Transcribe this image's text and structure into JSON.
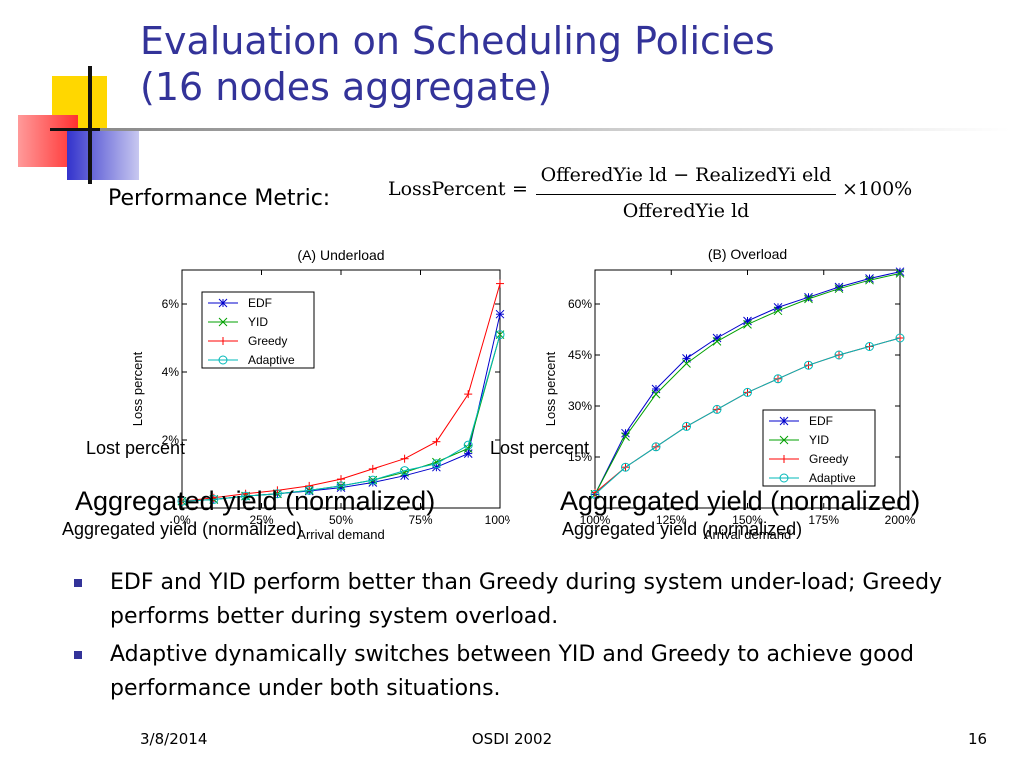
{
  "slide": {
    "title_line1": "Evaluation on Scheduling Policies",
    "title_line2": "(16 nodes aggregate)",
    "metric_label": "Performance Metric:",
    "formula": {
      "lhs": "LossPercent",
      "equals": "=",
      "numerator": "OfferedYie ld − RealizedYi eld",
      "denominator": "OfferedYie ld",
      "multiplier": "×100%"
    },
    "bullets": [
      "EDF and YID perform better than Greedy during system under-load; Greedy performs better during system overload.",
      "Adaptive dynamically switches between YID and Greedy to achieve good performance under both situations."
    ],
    "footer": {
      "date": "3/8/2014",
      "venue": "OSDI 2002",
      "page": "16"
    },
    "overlays": {
      "lost_left": "Lost percent",
      "lost_right": "Lost percent",
      "agg_big": "Aggregated yield (normalized)",
      "agg_small": "Aggregated yield (normalized)"
    },
    "colors": {
      "title": "#333399",
      "bullet": "#333399"
    }
  },
  "chart_data": [
    {
      "type": "line",
      "title": "(A) Underload",
      "xlabel": "Arrival demand",
      "ylabel": "Loss percent",
      "x": [
        0,
        10,
        20,
        30,
        40,
        50,
        60,
        70,
        80,
        90,
        100
      ],
      "xticks": [
        0,
        25,
        50,
        75,
        100
      ],
      "xtick_labels": [
        "0%",
        "25%",
        "50%",
        "75%",
        "100%"
      ],
      "yticks": [
        2,
        4,
        6
      ],
      "ytick_labels": [
        "2%",
        "4%",
        "6%"
      ],
      "xlim": [
        0,
        100
      ],
      "ylim": [
        0,
        7
      ],
      "legend_position": "top-left",
      "series": [
        {
          "name": "EDF",
          "color": "#0000cc",
          "marker": "star",
          "values": [
            0.2,
            0.25,
            0.35,
            0.42,
            0.5,
            0.6,
            0.75,
            0.95,
            1.2,
            1.6,
            5.7
          ]
        },
        {
          "name": "YID",
          "color": "#00a000",
          "marker": "x",
          "values": [
            0.2,
            0.25,
            0.35,
            0.42,
            0.52,
            0.65,
            0.82,
            1.05,
            1.35,
            1.75,
            5.1
          ]
        },
        {
          "name": "Greedy",
          "color": "#ff0000",
          "marker": "plus",
          "values": [
            0.2,
            0.3,
            0.42,
            0.52,
            0.65,
            0.85,
            1.15,
            1.45,
            1.95,
            3.35,
            6.6
          ]
        },
        {
          "name": "Adaptive",
          "color": "#00b8b8",
          "marker": "circle",
          "values": [
            0.2,
            0.25,
            0.35,
            0.42,
            0.52,
            0.65,
            0.82,
            1.1,
            1.3,
            1.85,
            5.1
          ]
        }
      ]
    },
    {
      "type": "line",
      "title": "(B) Overload",
      "xlabel": "Arrival demand",
      "ylabel": "Loss percent",
      "x": [
        100,
        110,
        120,
        130,
        140,
        150,
        160,
        170,
        180,
        190,
        200
      ],
      "xticks": [
        100,
        125,
        150,
        175,
        200
      ],
      "xtick_labels": [
        "100%",
        "125%",
        "150%",
        "175%",
        "200%"
      ],
      "yticks": [
        15,
        30,
        45,
        60
      ],
      "ytick_labels": [
        "15%",
        "30%",
        "45%",
        "60%"
      ],
      "xlim": [
        100,
        200
      ],
      "ylim": [
        0,
        70
      ],
      "legend_position": "bottom-right",
      "series": [
        {
          "name": "EDF",
          "color": "#0000cc",
          "marker": "star",
          "values": [
            4,
            22,
            35,
            44,
            50,
            55,
            59,
            62,
            65,
            67.5,
            69.5
          ]
        },
        {
          "name": "YID",
          "color": "#00a000",
          "marker": "x",
          "values": [
            4,
            21,
            33.5,
            42.5,
            49,
            54,
            58,
            61.5,
            64.5,
            67,
            69
          ]
        },
        {
          "name": "Greedy",
          "color": "#ff0000",
          "marker": "plus",
          "values": [
            4.5,
            12,
            18,
            24,
            29,
            34,
            38,
            42,
            45,
            47.5,
            50
          ]
        },
        {
          "name": "Adaptive",
          "color": "#00b8b8",
          "marker": "circle",
          "values": [
            4,
            12,
            18,
            24,
            29,
            34,
            38,
            42,
            45,
            47.5,
            50
          ]
        }
      ]
    }
  ]
}
